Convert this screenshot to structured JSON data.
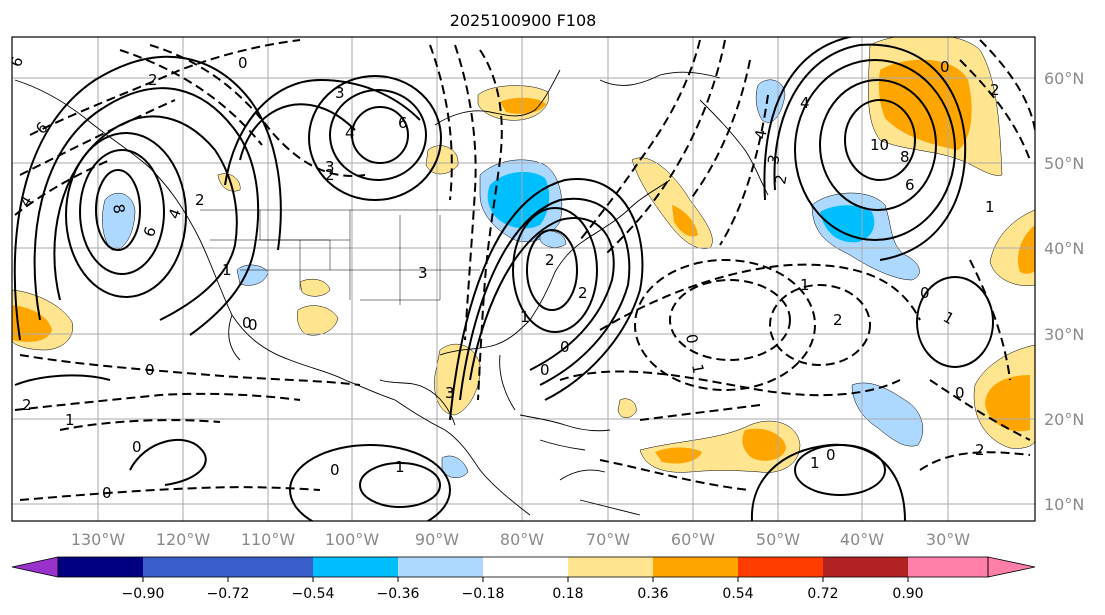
{
  "title": "2025100900 F108",
  "lon_labels": [
    "130°W",
    "120°W",
    "110°W",
    "100°W",
    "90°W",
    "80°W",
    "70°W",
    "60°W",
    "50°W",
    "40°W",
    "30°W"
  ],
  "lat_labels": [
    "60°N",
    "50°N",
    "40°N",
    "30°N",
    "20°N",
    "10°N"
  ],
  "colorbar": {
    "tick_labels": [
      "−0.90",
      "−0.72",
      "−0.54",
      "−0.36",
      "−0.18",
      "0.18",
      "0.36",
      "0.54",
      "0.72",
      "0.90"
    ],
    "colors": [
      "#9932cc",
      "#000080",
      "#3a5fcd",
      "#00bfff",
      "#add8ff",
      "#ffffff",
      "#ffe58f",
      "#ffa500",
      "#ff3c00",
      "#b22222",
      "#ff7fa8"
    ]
  },
  "contour_labels": [
    "6",
    "6",
    "2",
    "0",
    "4",
    "8",
    "6",
    "4",
    "2",
    "3",
    "6",
    "4",
    "2",
    "3",
    "2",
    "1",
    "0",
    "0",
    "1",
    "2",
    "0",
    "4",
    "3",
    "2",
    "10",
    "8",
    "6",
    "4",
    "2",
    "0",
    "1",
    "1",
    "2",
    "0",
    "1",
    "1",
    "0",
    "0",
    "1",
    "0",
    "2",
    "1",
    "0",
    "1",
    "0",
    "0",
    "2",
    "3",
    "0",
    "3",
    "0"
  ]
}
